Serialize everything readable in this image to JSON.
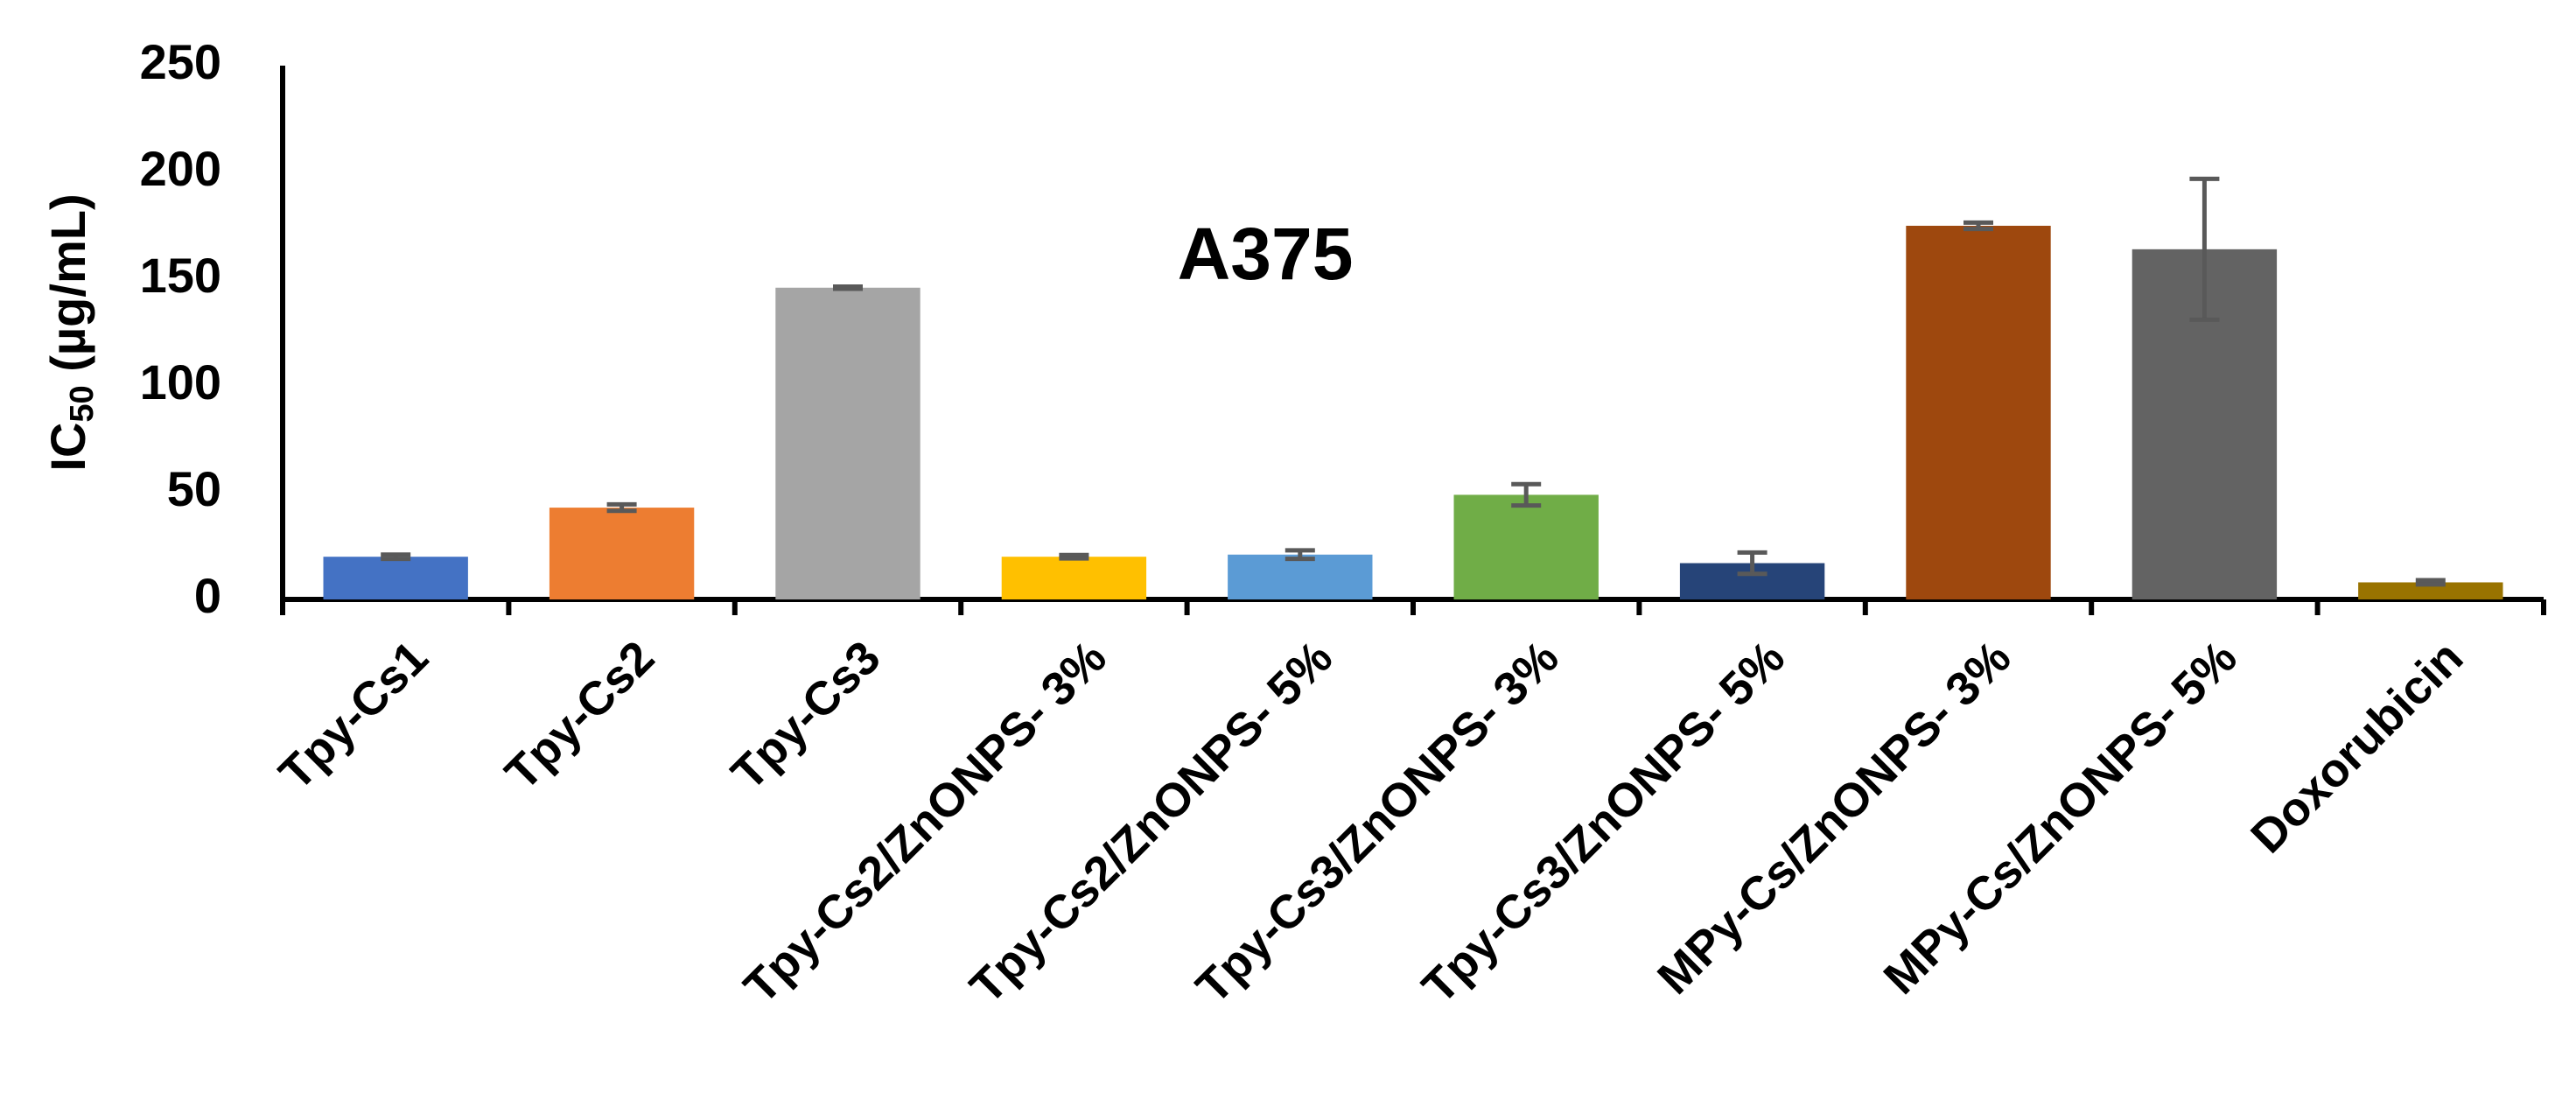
{
  "chart_data": {
    "type": "bar",
    "title": "A375",
    "ylabel": {
      "main": "IC",
      "sub": "50",
      "rest": " (µg/mL)"
    },
    "categories": [
      "Tpy-Cs1",
      "Tpy-Cs2",
      "Tpy-Cs3",
      "Tpy-Cs2/ZnONPS- 3%",
      "Tpy-Cs2/ZnONPS- 5%",
      "Tpy-Cs3/ZnONPS- 3%",
      "Tpy-Cs3/ZnONPS- 5%",
      "MPy-Cs/ZnONPS- 3%",
      "MPy-Cs/ZnONPS- 5%",
      "Doxorubicin"
    ],
    "values": [
      20,
      43,
      146,
      20,
      21,
      49,
      17,
      175,
      164,
      8
    ],
    "errors": [
      1,
      1.5,
      0.5,
      0.8,
      2,
      5,
      5,
      1.5,
      33,
      1
    ],
    "colors": [
      "#4472c4",
      "#ed7d31",
      "#a5a5a5",
      "#ffc000",
      "#5b9bd5",
      "#70ad47",
      "#264478",
      "#9e480e",
      "#636363",
      "#997300"
    ],
    "ylim": [
      0,
      250
    ],
    "yticks": [
      0,
      50,
      100,
      150,
      200,
      250
    ],
    "grid": false
  }
}
